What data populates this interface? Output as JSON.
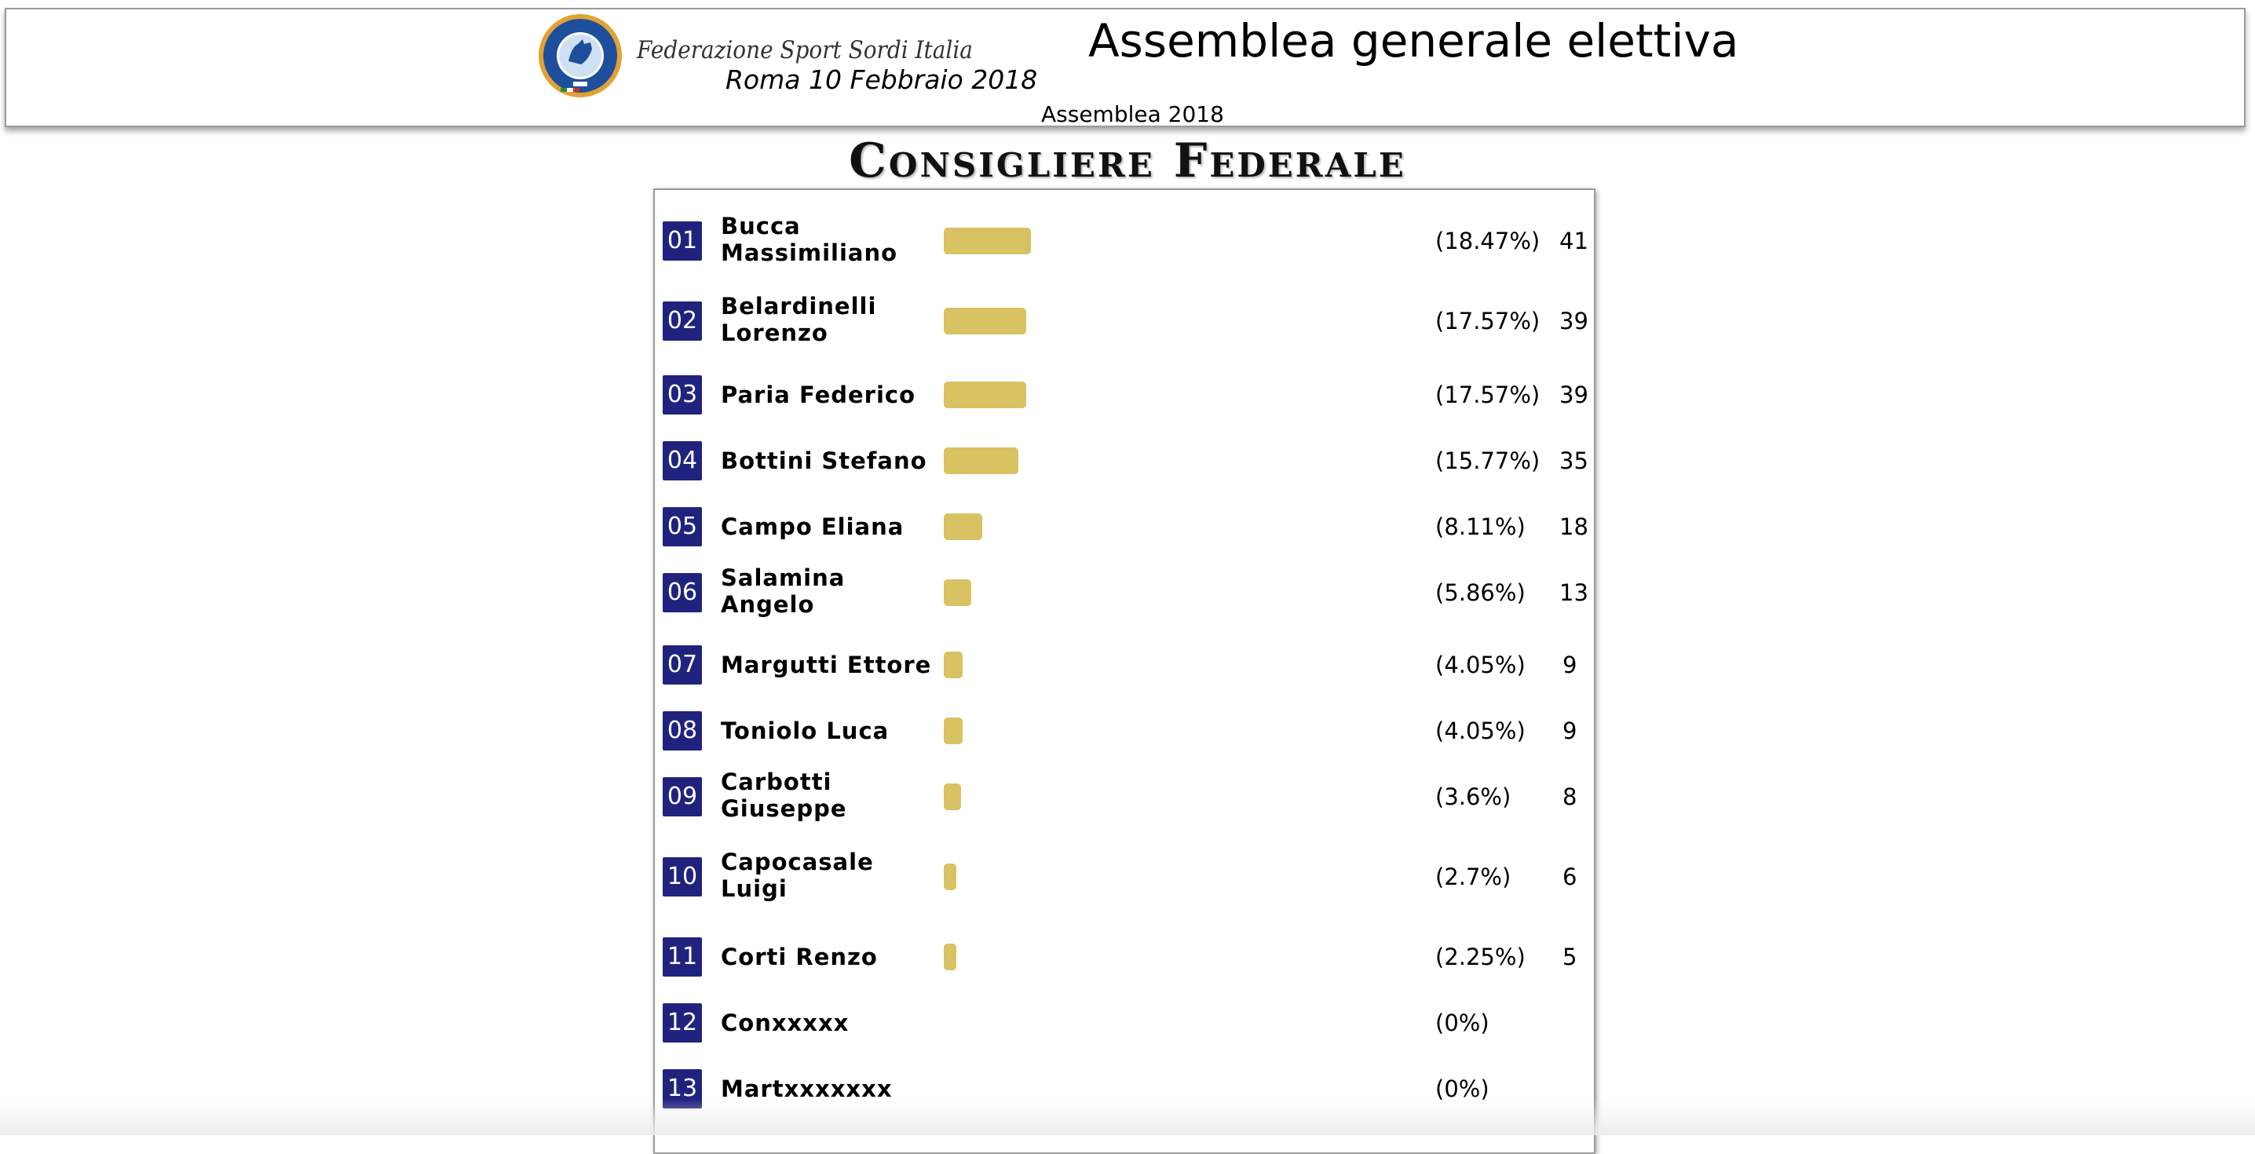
{
  "header": {
    "logo_text": "FEDERAZIONE SPORT SORDI ITALIA",
    "federation_name": "Federazione Sport Sordi Italia",
    "meeting_date": "Roma 10 Febbraio 2018",
    "title": "Assemblea generale elettiva",
    "subtitle": "Assemblea 2018",
    "logo_colors": {
      "outer_ring": "#e2a233",
      "inner_disc": "#1e4f9c",
      "center": "#ffffff"
    }
  },
  "section": {
    "title": "Consigliere Federale"
  },
  "bar_color": "#d8c261",
  "badge_color": "#20237e",
  "max_votes_scale": 222,
  "candidates": [
    {
      "num": "01",
      "name": "Bucca Massimiliano",
      "pct": "(18.47%)",
      "votes": "41",
      "share": 0.1847
    },
    {
      "num": "02",
      "name": "Belardinelli Lorenzo",
      "pct": "(17.57%)",
      "votes": "39",
      "share": 0.1757
    },
    {
      "num": "03",
      "name": "Paria Federico",
      "pct": "(17.57%)",
      "votes": "39",
      "share": 0.1757
    },
    {
      "num": "04",
      "name": "Bottini Stefano",
      "pct": "(15.77%)",
      "votes": "35",
      "share": 0.1577
    },
    {
      "num": "05",
      "name": "Campo Eliana",
      "pct": "(8.11%)",
      "votes": "18",
      "share": 0.0811
    },
    {
      "num": "06",
      "name": "Salamina Angelo",
      "pct": "(5.86%)",
      "votes": "13",
      "share": 0.0586
    },
    {
      "num": "07",
      "name": "Margutti Ettore",
      "pct": "(4.05%)",
      "votes": "9",
      "share": 0.0405
    },
    {
      "num": "08",
      "name": "Toniolo Luca",
      "pct": "(4.05%)",
      "votes": "9",
      "share": 0.0405
    },
    {
      "num": "09",
      "name": "Carbotti Giuseppe",
      "pct": "(3.6%)",
      "votes": "8",
      "share": 0.036
    },
    {
      "num": "10",
      "name": "Capocasale Luigi",
      "pct": "(2.7%)",
      "votes": "6",
      "share": 0.027
    },
    {
      "num": "11",
      "name": "Corti Renzo",
      "pct": "(2.25%)",
      "votes": "5",
      "share": 0.0225
    },
    {
      "num": "12",
      "name": "Conxxxxx",
      "pct": "(0%)",
      "votes": "",
      "share": 0
    },
    {
      "num": "13",
      "name": "Martxxxxxxx",
      "pct": "(0%)",
      "votes": "",
      "share": 0
    }
  ]
}
